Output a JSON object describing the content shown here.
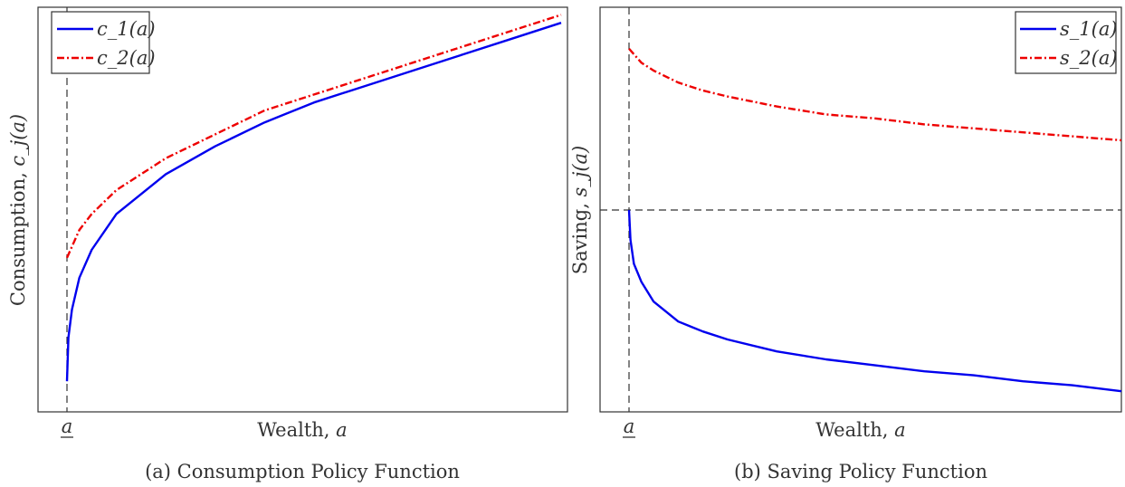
{
  "panels": [
    {
      "caption": "(a) Consumption Policy Function",
      "xlabel_text": "Wealth, ",
      "xlabel_var": "a",
      "xtick_label": "a",
      "ylabel_text": "Consumption, ",
      "ylabel_var": "c_j(a)",
      "legend": [
        "c_1(a)",
        "c_2(a)"
      ]
    },
    {
      "caption": "(b) Saving Policy Function",
      "xlabel_text": "Wealth, ",
      "xlabel_var": "a",
      "xtick_label": "a",
      "ylabel_text": "Saving, ",
      "ylabel_var": "s_j(a)",
      "legend": [
        "s_1(a)",
        "s_2(a)"
      ]
    }
  ],
  "chart_data": [
    {
      "type": "line",
      "title": "(a) Consumption Policy Function",
      "xlabel": "Wealth, a",
      "ylabel": "Consumption, c_j(a)",
      "xlim": [
        0,
        10
      ],
      "ylim": [
        0,
        1
      ],
      "xticks": [
        {
          "value": 0,
          "label": "a"
        }
      ],
      "vlines": [
        0
      ],
      "legend_position": "top-left",
      "grid": false,
      "series": [
        {
          "name": "c_1(a)",
          "color": "#0000ee",
          "style": "solid",
          "x": [
            0,
            0.03,
            0.1,
            0.25,
            0.5,
            1,
            1.5,
            2,
            3,
            4,
            5,
            6,
            7,
            8,
            9,
            10
          ],
          "y": [
            0.07,
            0.18,
            0.25,
            0.33,
            0.4,
            0.49,
            0.54,
            0.59,
            0.66,
            0.72,
            0.77,
            0.81,
            0.85,
            0.89,
            0.93,
            0.97
          ]
        },
        {
          "name": "c_2(a)",
          "color": "#ee0000",
          "style": "dashdot",
          "x": [
            0,
            0.25,
            0.5,
            1,
            1.5,
            2,
            3,
            4,
            5,
            6,
            7,
            8,
            9,
            10
          ],
          "y": [
            0.38,
            0.45,
            0.49,
            0.55,
            0.59,
            0.63,
            0.69,
            0.75,
            0.79,
            0.83,
            0.87,
            0.91,
            0.95,
            0.99
          ]
        }
      ]
    },
    {
      "type": "line",
      "title": "(b) Saving Policy Function",
      "xlabel": "Wealth, a",
      "ylabel": "Saving, s_j(a)",
      "xlim": [
        0,
        10
      ],
      "ylim": [
        -1,
        1
      ],
      "xticks": [
        {
          "value": 0,
          "label": "a"
        }
      ],
      "vlines": [
        0
      ],
      "hlines": [
        0
      ],
      "legend_position": "top-right",
      "grid": false,
      "series": [
        {
          "name": "s_1(a)",
          "color": "#0000ee",
          "style": "solid",
          "x": [
            0,
            0.03,
            0.1,
            0.25,
            0.5,
            1,
            1.5,
            2,
            3,
            4,
            5,
            6,
            7,
            8,
            9,
            10
          ],
          "y": [
            0.0,
            -0.15,
            -0.27,
            -0.36,
            -0.46,
            -0.56,
            -0.61,
            -0.65,
            -0.71,
            -0.75,
            -0.78,
            -0.81,
            -0.83,
            -0.86,
            -0.88,
            -0.91
          ]
        },
        {
          "name": "s_2(a)",
          "color": "#ee0000",
          "style": "dashdot",
          "x": [
            0,
            0.25,
            0.5,
            1,
            1.5,
            2,
            3,
            4,
            5,
            6,
            7,
            8,
            9,
            10
          ],
          "y": [
            0.81,
            0.74,
            0.7,
            0.64,
            0.6,
            0.57,
            0.52,
            0.48,
            0.46,
            0.43,
            0.41,
            0.39,
            0.37,
            0.35
          ]
        }
      ]
    }
  ]
}
